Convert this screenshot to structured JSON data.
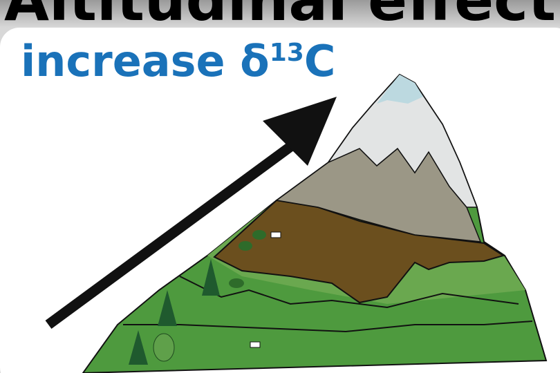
{
  "title": "Altitudinal effect",
  "label": {
    "text": "increase δ",
    "superscript": "13",
    "suffix": "C"
  }
}
